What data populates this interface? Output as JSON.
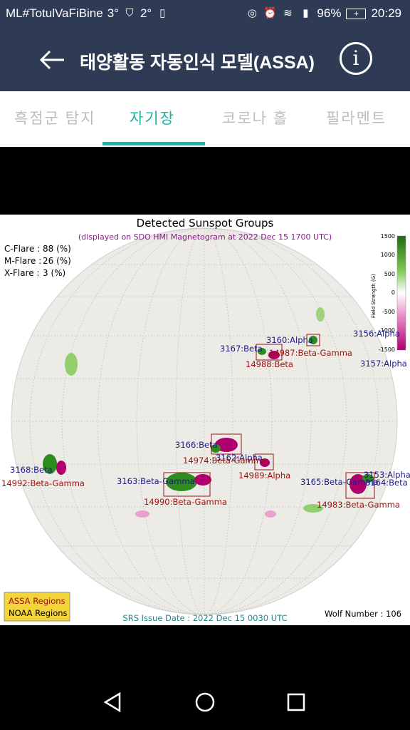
{
  "status_bar": {
    "carrier": "ML#TotulVaFiBine",
    "temp1": "3°",
    "temp2": "2°",
    "battery_pct": "96%",
    "time": "20:29"
  },
  "app_bar": {
    "title": "태양활동 자동인식 모델(ASSA)",
    "back_icon": "arrow-left-icon",
    "info_icon": "info-icon"
  },
  "tabs": [
    {
      "label": "흑점군 탐지",
      "active": false
    },
    {
      "label": "자기장",
      "active": true
    },
    {
      "label": "코로나 홀",
      "active": false
    },
    {
      "label": "필라멘트",
      "active": false
    }
  ],
  "figure": {
    "title": "Detected Sunspot Groups",
    "subtitle": "(displayed on SDO HMI Magnetogram at 2022 Dec 15 1700 UTC)",
    "flares": [
      {
        "label": "C-Flare :",
        "value": "88 (%)"
      },
      {
        "label": "M-Flare :",
        "value": "26 (%)"
      },
      {
        "label": "X-Flare :",
        "value": " 3 (%)"
      }
    ],
    "colorbar": {
      "label": "Field Strength (G)",
      "ticks": [
        "1500",
        "1000",
        "500",
        "0",
        "-500",
        "-1000",
        "-1500"
      ],
      "color_pos": "#2e8b1e",
      "color_neg": "#c2007a"
    },
    "assa_labels": [
      "3160:Alpha",
      "3156:Alpha",
      "3167:Beta",
      "3157:Alpha",
      "3166:Beta",
      "3162:Alpha",
      "3168:Beta",
      "3163:Beta-Gamma",
      "3165:Beta-Gamma",
      "3153:Alpha",
      "3164:Beta"
    ],
    "noaa_labels": [
      "14987:Beta-Gamma",
      "14988:Beta",
      "14974:Beta-Gamma",
      "14989:Alpha",
      "14992:Beta-Gamma",
      "14990:Beta-Gamma",
      "14983:Beta-Gamma"
    ],
    "legend": {
      "assa": "ASSA Regions",
      "noaa": "NOAA Regions"
    },
    "issue_date": "SRS Issue Date : 2022 Dec 15 0030 UTC",
    "wolf_number": "Wolf Number : 106",
    "colors": {
      "assa": "#1a1a8c",
      "noaa": "#9b1010",
      "title": "#000000",
      "subtitle": "#8b1a8b",
      "issue": "#1a8b8b"
    }
  },
  "nav": {
    "back": "nav-back-icon",
    "home": "nav-home-icon",
    "recents": "nav-recents-icon"
  }
}
